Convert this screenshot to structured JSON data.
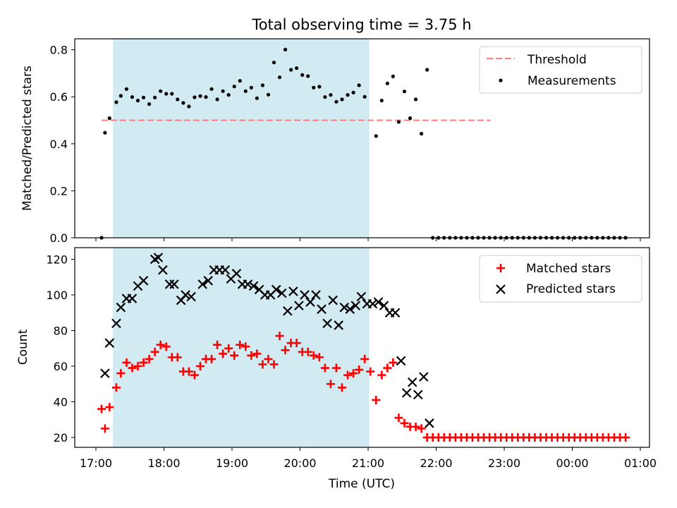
{
  "title": "Total observing time = 3.75 h",
  "colors": {
    "threshold": "#ff7f7f",
    "measurements": "#000000",
    "matched": "#ff0000",
    "predicted": "#000000",
    "span": "#add8e6"
  },
  "chart_data": [
    {
      "type": "scatter",
      "ylabel": "Matched/Predicted stars",
      "ylim": [
        0,
        0.85
      ],
      "yticks": [
        "0.0",
        "0.2",
        "0.4",
        "0.6",
        "0.8"
      ],
      "shaded_span": [
        "17:15",
        "21:01"
      ],
      "legend": {
        "position": "top-right",
        "entries": [
          "Threshold",
          "Measurements"
        ]
      },
      "threshold": {
        "name": "Threshold",
        "value": 0.5,
        "x": [
          "17:05",
          "22:48"
        ]
      },
      "series": [
        {
          "name": "Measurements",
          "marker": "dot",
          "points": [
            [
              "17:05",
              0.0
            ],
            [
              "17:08",
              0.447
            ],
            [
              "17:12",
              0.509
            ],
            [
              "17:18",
              0.577
            ],
            [
              "17:22",
              0.604
            ],
            [
              "17:27",
              0.633
            ],
            [
              "17:32",
              0.599
            ],
            [
              "17:37",
              0.584
            ],
            [
              "17:42",
              0.597
            ],
            [
              "17:47",
              0.569
            ],
            [
              "17:52",
              0.597
            ],
            [
              "17:57",
              0.624
            ],
            [
              "18:02",
              0.613
            ],
            [
              "18:07",
              0.613
            ],
            [
              "18:12",
              0.589
            ],
            [
              "18:17",
              0.574
            ],
            [
              "18:22",
              0.559
            ],
            [
              "18:27",
              0.598
            ],
            [
              "18:32",
              0.603
            ],
            [
              "18:37",
              0.599
            ],
            [
              "18:42",
              0.633
            ],
            [
              "18:47",
              0.589
            ],
            [
              "18:52",
              0.624
            ],
            [
              "18:57",
              0.608
            ],
            [
              "19:02",
              0.644
            ],
            [
              "19:07",
              0.668
            ],
            [
              "19:12",
              0.624
            ],
            [
              "19:17",
              0.639
            ],
            [
              "19:22",
              0.594
            ],
            [
              "19:27",
              0.649
            ],
            [
              "19:32",
              0.609
            ],
            [
              "19:37",
              0.746
            ],
            [
              "19:42",
              0.683
            ],
            [
              "19:47",
              0.801
            ],
            [
              "19:52",
              0.715
            ],
            [
              "19:57",
              0.722
            ],
            [
              "20:02",
              0.693
            ],
            [
              "20:07",
              0.688
            ],
            [
              "20:12",
              0.639
            ],
            [
              "20:17",
              0.643
            ],
            [
              "20:22",
              0.599
            ],
            [
              "20:27",
              0.608
            ],
            [
              "20:32",
              0.579
            ],
            [
              "20:37",
              0.589
            ],
            [
              "20:42",
              0.608
            ],
            [
              "20:47",
              0.618
            ],
            [
              "20:52",
              0.649
            ],
            [
              "20:57",
              0.6
            ],
            [
              "21:07",
              0.433
            ],
            [
              "21:12",
              0.584
            ],
            [
              "21:17",
              0.657
            ],
            [
              "21:22",
              0.687
            ],
            [
              "21:27",
              0.493
            ],
            [
              "21:32",
              0.623
            ],
            [
              "21:37",
              0.509
            ],
            [
              "21:42",
              0.589
            ],
            [
              "21:47",
              0.443
            ],
            [
              "21:52",
              0.715
            ],
            [
              "21:57",
              0.0
            ],
            [
              "22:02",
              0.0
            ],
            [
              "22:07",
              0.0
            ],
            [
              "22:12",
              0.0
            ],
            [
              "22:17",
              0.0
            ],
            [
              "22:22",
              0.0
            ],
            [
              "22:27",
              0.0
            ],
            [
              "22:32",
              0.0
            ],
            [
              "22:37",
              0.0
            ],
            [
              "22:42",
              0.0
            ],
            [
              "22:47",
              0.0
            ],
            [
              "22:52",
              0.0
            ],
            [
              "22:57",
              0.0
            ],
            [
              "23:02",
              0.0
            ],
            [
              "23:07",
              0.0
            ],
            [
              "23:12",
              0.0
            ],
            [
              "23:17",
              0.0
            ],
            [
              "23:22",
              0.0
            ],
            [
              "23:27",
              0.0
            ],
            [
              "23:32",
              0.0
            ],
            [
              "23:37",
              0.0
            ],
            [
              "23:42",
              0.0
            ],
            [
              "23:47",
              0.0
            ],
            [
              "23:52",
              0.0
            ],
            [
              "23:57",
              0.0
            ],
            [
              "00:02",
              0.0
            ],
            [
              "00:07",
              0.0
            ],
            [
              "00:12",
              0.0
            ],
            [
              "00:17",
              0.0
            ],
            [
              "00:22",
              0.0
            ],
            [
              "00:27",
              0.0
            ],
            [
              "00:32",
              0.0
            ],
            [
              "00:37",
              0.0
            ],
            [
              "00:42",
              0.0
            ],
            [
              "00:47",
              0.0
            ]
          ]
        }
      ]
    },
    {
      "type": "scatter",
      "xlabel": "Time (UTC)",
      "ylabel": "Count",
      "ylim": [
        15,
        126
      ],
      "yticks": [
        "20",
        "40",
        "60",
        "80",
        "100",
        "120"
      ],
      "xticks": [
        "17:00",
        "18:00",
        "19:00",
        "20:00",
        "21:00",
        "22:00",
        "23:00",
        "00:00",
        "01:00"
      ],
      "shaded_span": [
        "17:15",
        "21:01"
      ],
      "legend": {
        "position": "top-right",
        "entries": [
          "Matched stars",
          "Predicted stars"
        ]
      },
      "series": [
        {
          "name": "Matched stars",
          "marker": "plus",
          "points": [
            [
              "17:05",
              36
            ],
            [
              "17:08",
              25
            ],
            [
              "17:12",
              37
            ],
            [
              "17:18",
              48
            ],
            [
              "17:22",
              56
            ],
            [
              "17:27",
              62
            ],
            [
              "17:32",
              59
            ],
            [
              "17:37",
              60
            ],
            [
              "17:42",
              62
            ],
            [
              "17:47",
              64
            ],
            [
              "17:52",
              68
            ],
            [
              "17:57",
              72
            ],
            [
              "18:02",
              71
            ],
            [
              "18:07",
              65
            ],
            [
              "18:12",
              65
            ],
            [
              "18:17",
              57
            ],
            [
              "18:22",
              57
            ],
            [
              "18:27",
              55
            ],
            [
              "18:32",
              60
            ],
            [
              "18:37",
              64
            ],
            [
              "18:42",
              64
            ],
            [
              "18:47",
              72
            ],
            [
              "18:52",
              67
            ],
            [
              "18:57",
              70
            ],
            [
              "19:02",
              66
            ],
            [
              "19:07",
              72
            ],
            [
              "19:12",
              71
            ],
            [
              "19:17",
              66
            ],
            [
              "19:22",
              67
            ],
            [
              "19:27",
              61
            ],
            [
              "19:32",
              64
            ],
            [
              "19:37",
              61
            ],
            [
              "19:42",
              77
            ],
            [
              "19:47",
              69
            ],
            [
              "19:52",
              73
            ],
            [
              "19:57",
              73
            ],
            [
              "20:02",
              68
            ],
            [
              "20:07",
              68
            ],
            [
              "20:12",
              66
            ],
            [
              "20:17",
              65
            ],
            [
              "20:22",
              59
            ],
            [
              "20:27",
              50
            ],
            [
              "20:32",
              59
            ],
            [
              "20:37",
              48
            ],
            [
              "20:42",
              55
            ],
            [
              "20:47",
              56
            ],
            [
              "20:52",
              58
            ],
            [
              "20:57",
              64
            ],
            [
              "21:02",
              57
            ],
            [
              "21:07",
              41
            ],
            [
              "21:12",
              55
            ],
            [
              "21:17",
              59
            ],
            [
              "21:22",
              62
            ],
            [
              "21:27",
              31
            ],
            [
              "21:32",
              28
            ],
            [
              "21:37",
              26
            ],
            [
              "21:42",
              26
            ],
            [
              "21:47",
              25
            ],
            [
              "21:52",
              20
            ],
            [
              "21:57",
              20
            ],
            [
              "22:02",
              20
            ],
            [
              "22:07",
              20
            ],
            [
              "22:12",
              20
            ],
            [
              "22:17",
              20
            ],
            [
              "22:22",
              20
            ],
            [
              "22:27",
              20
            ],
            [
              "22:32",
              20
            ],
            [
              "22:37",
              20
            ],
            [
              "22:42",
              20
            ],
            [
              "22:47",
              20
            ],
            [
              "22:52",
              20
            ],
            [
              "22:57",
              20
            ],
            [
              "23:02",
              20
            ],
            [
              "23:07",
              20
            ],
            [
              "23:12",
              20
            ],
            [
              "23:17",
              20
            ],
            [
              "23:22",
              20
            ],
            [
              "23:27",
              20
            ],
            [
              "23:32",
              20
            ],
            [
              "23:37",
              20
            ],
            [
              "23:42",
              20
            ],
            [
              "23:47",
              20
            ],
            [
              "23:52",
              20
            ],
            [
              "23:57",
              20
            ],
            [
              "00:02",
              20
            ],
            [
              "00:07",
              20
            ],
            [
              "00:12",
              20
            ],
            [
              "00:17",
              20
            ],
            [
              "00:22",
              20
            ],
            [
              "00:27",
              20
            ],
            [
              "00:32",
              20
            ],
            [
              "00:37",
              20
            ],
            [
              "00:42",
              20
            ],
            [
              "00:47",
              20
            ]
          ]
        },
        {
          "name": "Predicted stars",
          "marker": "x",
          "points": [
            [
              "17:08",
              56
            ],
            [
              "17:12",
              73
            ],
            [
              "17:18",
              84
            ],
            [
              "17:22",
              93
            ],
            [
              "17:27",
              98
            ],
            [
              "17:32",
              98
            ],
            [
              "17:37",
              105
            ],
            [
              "17:42",
              108
            ],
            [
              "17:52",
              120
            ],
            [
              "17:55",
              121
            ],
            [
              "17:59",
              114
            ],
            [
              "18:05",
              106
            ],
            [
              "18:09",
              106
            ],
            [
              "18:15",
              97
            ],
            [
              "18:19",
              100
            ],
            [
              "18:24",
              99
            ],
            [
              "18:34",
              106
            ],
            [
              "18:39",
              108
            ],
            [
              "18:44",
              114
            ],
            [
              "18:49",
              114
            ],
            [
              "18:54",
              114
            ],
            [
              "18:59",
              109
            ],
            [
              "19:04",
              112
            ],
            [
              "19:09",
              106
            ],
            [
              "19:14",
              106
            ],
            [
              "19:19",
              105
            ],
            [
              "19:24",
              103
            ],
            [
              "19:29",
              100
            ],
            [
              "19:34",
              100
            ],
            [
              "19:39",
              103
            ],
            [
              "19:44",
              101
            ],
            [
              "19:49",
              91
            ],
            [
              "19:54",
              102
            ],
            [
              "19:59",
              94
            ],
            [
              "20:04",
              100
            ],
            [
              "20:09",
              96
            ],
            [
              "20:14",
              100
            ],
            [
              "20:19",
              92
            ],
            [
              "20:24",
              84
            ],
            [
              "20:29",
              97
            ],
            [
              "20:34",
              83
            ],
            [
              "20:39",
              93
            ],
            [
              "20:44",
              92
            ],
            [
              "20:49",
              94
            ],
            [
              "20:54",
              99
            ],
            [
              "20:59",
              95
            ],
            [
              "21:04",
              95
            ],
            [
              "21:09",
              96
            ],
            [
              "21:14",
              94
            ],
            [
              "21:19",
              90
            ],
            [
              "21:24",
              90
            ],
            [
              "21:29",
              63
            ],
            [
              "21:34",
              45
            ],
            [
              "21:39",
              51
            ],
            [
              "21:44",
              44
            ],
            [
              "21:49",
              54
            ],
            [
              "21:54",
              28
            ]
          ]
        }
      ]
    }
  ]
}
